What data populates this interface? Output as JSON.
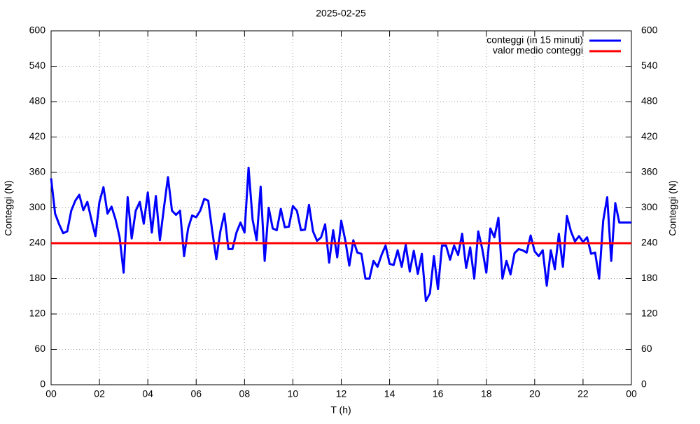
{
  "chart_data": {
    "type": "line",
    "title": "2025-02-25",
    "xlabel": "T (h)",
    "ylabel": "Conteggi (N)",
    "y2label": "Conteggi (N)",
    "x": [
      0,
      10,
      20,
      30,
      40,
      50,
      60,
      70,
      80,
      90,
      100,
      110,
      120,
      130,
      140,
      150,
      160,
      170,
      180,
      190,
      200,
      210,
      220,
      230,
      240,
      250,
      260,
      270,
      280,
      290,
      300,
      310,
      320,
      330,
      340,
      350,
      360,
      370,
      380,
      390,
      400,
      410,
      420,
      430,
      440,
      450,
      460,
      470,
      480,
      490,
      500,
      510,
      520,
      530,
      540,
      550,
      560,
      570,
      580,
      590,
      600,
      610,
      620,
      630,
      640,
      650,
      660,
      670,
      680,
      690,
      700,
      710,
      720,
      730,
      740,
      750,
      760,
      770,
      780,
      790,
      800,
      810,
      820,
      830,
      840,
      850,
      860,
      870,
      880,
      890,
      900,
      910,
      920,
      930,
      940,
      950,
      960,
      970,
      980,
      990,
      1000,
      1010,
      1020,
      1030,
      1040,
      1050,
      1060,
      1070,
      1080,
      1090,
      1100,
      1110,
      1120,
      1130,
      1140,
      1150,
      1160,
      1170,
      1180,
      1190,
      1200,
      1210,
      1220,
      1230,
      1240,
      1250,
      1260,
      1270,
      1280,
      1290,
      1300,
      1310,
      1320,
      1330,
      1340,
      1350,
      1360,
      1370,
      1380,
      1390,
      1400,
      1410,
      1440
    ],
    "series": [
      {
        "name": "conteggi (in 15 minuti)",
        "color": "#0000ff",
        "values": [
          350,
          290,
          272,
          257,
          260,
          295,
          312,
          322,
          296,
          310,
          280,
          252,
          310,
          335,
          290,
          302,
          280,
          250,
          190,
          318,
          248,
          295,
          310,
          273,
          326,
          258,
          320,
          245,
          300,
          352,
          295,
          288,
          295,
          218,
          265,
          287,
          284,
          295,
          315,
          312,
          260,
          213,
          260,
          290,
          230,
          230,
          258,
          275,
          258,
          368,
          280,
          245,
          336,
          210,
          300,
          265,
          262,
          298,
          267,
          268,
          303,
          295,
          262,
          263,
          305,
          260,
          244,
          250,
          272,
          207,
          262,
          216,
          278,
          245,
          202,
          245,
          224,
          222,
          180,
          180,
          210,
          200,
          220,
          236,
          205,
          203,
          228,
          200,
          237,
          192,
          227,
          188,
          222,
          142,
          155,
          218,
          162,
          236,
          236,
          212,
          236,
          220,
          256,
          198,
          233,
          180,
          260,
          230,
          190,
          265,
          250,
          283,
          180,
          210,
          187,
          223,
          230,
          228,
          224,
          253,
          226,
          218,
          228,
          168,
          228,
          196,
          256,
          200,
          286,
          260,
          243,
          252,
          242,
          250,
          222,
          224,
          180,
          278,
          318,
          210,
          308,
          275,
          275
        ]
      }
    ],
    "reference_line": {
      "name": "valor medio conteggi",
      "color": "#ff0000",
      "value": 240
    },
    "xlim": [
      0,
      1440
    ],
    "xticks": [
      {
        "value": 0,
        "label": "00"
      },
      {
        "value": 120,
        "label": "02"
      },
      {
        "value": 240,
        "label": "04"
      },
      {
        "value": 360,
        "label": "06"
      },
      {
        "value": 480,
        "label": "08"
      },
      {
        "value": 600,
        "label": "10"
      },
      {
        "value": 720,
        "label": "12"
      },
      {
        "value": 840,
        "label": "14"
      },
      {
        "value": 960,
        "label": "16"
      },
      {
        "value": 1080,
        "label": "18"
      },
      {
        "value": 1200,
        "label": "20"
      },
      {
        "value": 1320,
        "label": "22"
      },
      {
        "value": 1440,
        "label": "00"
      }
    ],
    "ylim": [
      0,
      600
    ],
    "yticks": [
      0,
      60,
      120,
      180,
      240,
      300,
      360,
      420,
      480,
      540,
      600
    ],
    "y2lim": [
      0,
      600
    ],
    "y2ticks": [
      0,
      60,
      120,
      180,
      240,
      300,
      360,
      420,
      480,
      540,
      600
    ],
    "grid": true,
    "legend": "top-right"
  }
}
